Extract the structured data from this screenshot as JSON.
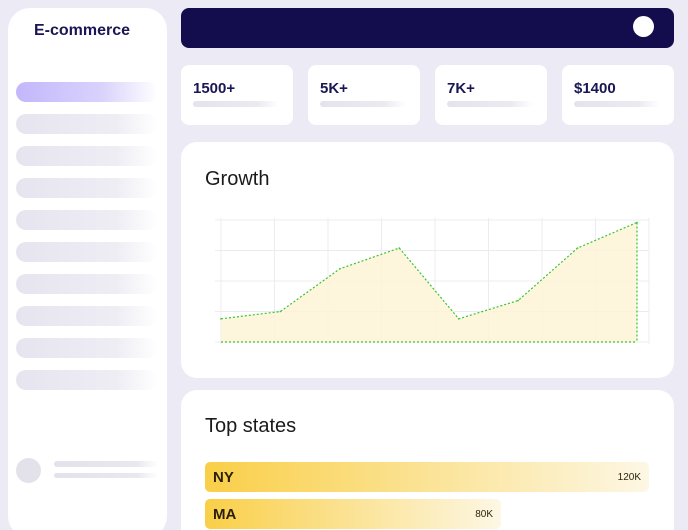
{
  "sidebar": {
    "brand": "E-commerce",
    "nav_items": [
      {
        "name": "nav-item-1",
        "active": true
      },
      {
        "name": "nav-item-2",
        "active": false
      },
      {
        "name": "nav-item-3",
        "active": false
      },
      {
        "name": "nav-item-4",
        "active": false
      },
      {
        "name": "nav-item-5",
        "active": false
      },
      {
        "name": "nav-item-6",
        "active": false
      },
      {
        "name": "nav-item-7",
        "active": false
      },
      {
        "name": "nav-item-8",
        "active": false
      },
      {
        "name": "nav-item-9",
        "active": false
      },
      {
        "name": "nav-item-10",
        "active": false
      }
    ]
  },
  "stats": [
    {
      "value": "1500+"
    },
    {
      "value": "5K+"
    },
    {
      "value": "7K+"
    },
    {
      "value": "$1400"
    }
  ],
  "growth": {
    "title": "Growth",
    "chart_data": {
      "type": "area",
      "title": "Growth",
      "xlabel": "",
      "ylabel": "",
      "grid": true,
      "ylim": [
        0,
        1
      ],
      "x": [
        0,
        1,
        2,
        3,
        4,
        5,
        6,
        7
      ],
      "series": [
        {
          "values": [
            0.19,
            0.25,
            0.6,
            0.77,
            0.19,
            0.34,
            0.77,
            0.98
          ]
        }
      ],
      "line_color": "#37c52f",
      "fill_color": "#fdf3d6"
    }
  },
  "states": {
    "title": "Top states",
    "max_value": 120000,
    "items": [
      {
        "label": "NY",
        "value": 120000,
        "display": "120K"
      },
      {
        "label": "MA",
        "value": 80000,
        "display": "80K"
      }
    ],
    "bar_color_start": "#f9cf48",
    "bar_color_end": "#fdf7e4"
  },
  "colors": {
    "accent": "#c3b7fb",
    "topbar": "#130d4d",
    "brand_text": "#1a1654",
    "page_bg": "#ecebf5"
  }
}
